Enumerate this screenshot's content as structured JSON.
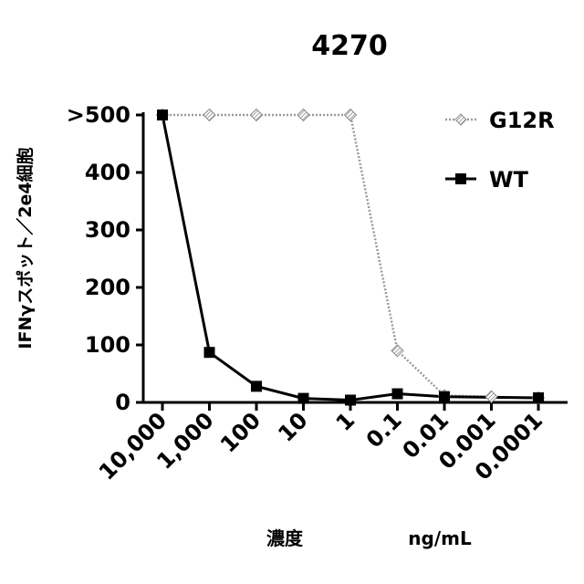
{
  "chart_data": {
    "type": "line",
    "title": "4270",
    "ylabel": "IFNγスポット／2e4細胞",
    "xlabel": "濃度",
    "xunit": "ng/mL",
    "categories": [
      "10,000",
      "1,000",
      "100",
      "10",
      "1",
      "0.1",
      "0.01",
      "0.001",
      "0.0001"
    ],
    "ylim": [
      0,
      500
    ],
    "yticks": [
      "0",
      "100",
      "200",
      "300",
      "400",
      ">500"
    ],
    "legend_position": "top-right",
    "series": [
      {
        "name": "G12R",
        "marker": "diamond-hatched",
        "line_style": "dotted",
        "color": "#9a9a9a",
        "values": [
          500,
          500,
          500,
          500,
          500,
          90,
          12,
          10,
          8
        ]
      },
      {
        "name": "WT",
        "marker": "square",
        "line_style": "solid",
        "color": "#000000",
        "values": [
          500,
          87,
          28,
          7,
          4,
          15,
          10,
          null,
          8
        ]
      }
    ]
  }
}
